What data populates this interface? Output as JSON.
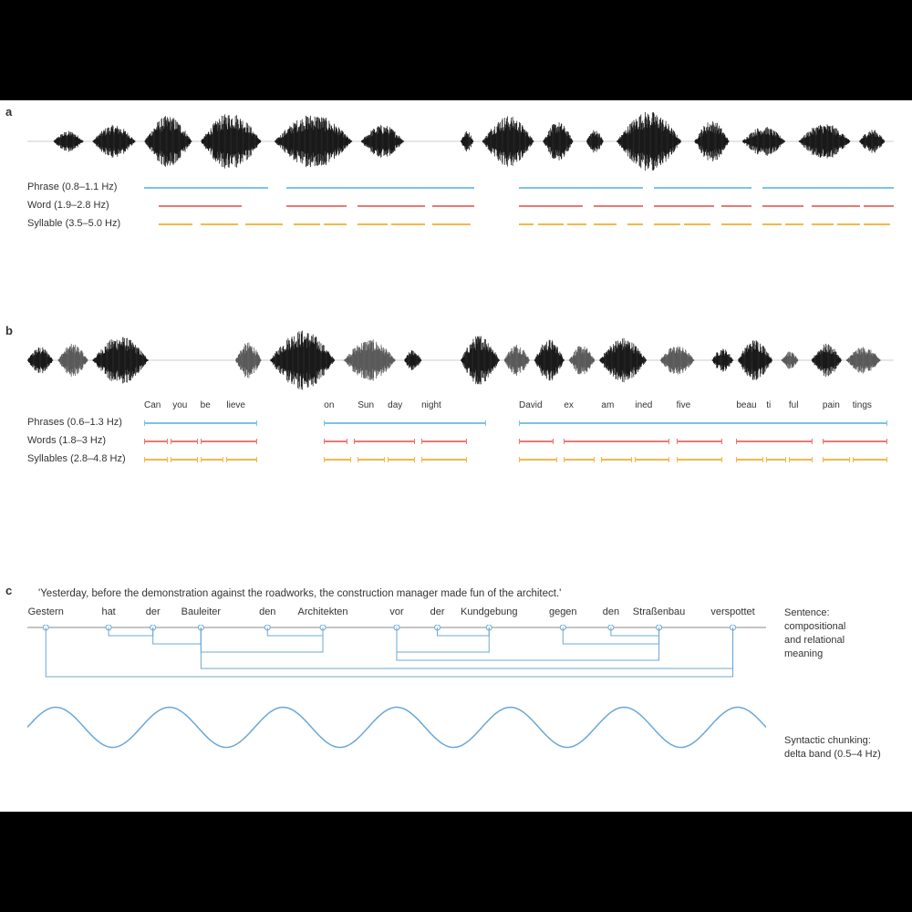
{
  "colors": {
    "phrase": "#7cc3e8",
    "word": "#e77a73",
    "syllable": "#f0b94a",
    "waveform": "#1a1a1a",
    "waveform_gray": "#5a5a5a",
    "text": "#333333",
    "tree": "#6aa8d8",
    "wave": "#6aa8d8",
    "baseline": "#888888"
  },
  "panel_a": {
    "label": "a",
    "phrase_label": "Phrase (0.8–1.1 Hz)",
    "word_label": "Word (1.9–2.8 Hz)",
    "syllable_label": "Syllable (3.5–5.0 Hz)",
    "waveform_clusters": [
      {
        "x": 0.03,
        "w": 0.035,
        "h": 0.35
      },
      {
        "x": 0.075,
        "w": 0.05,
        "h": 0.55
      },
      {
        "x": 0.135,
        "w": 0.055,
        "h": 0.85
      },
      {
        "x": 0.2,
        "w": 0.07,
        "h": 0.95
      },
      {
        "x": 0.285,
        "w": 0.09,
        "h": 0.9
      },
      {
        "x": 0.385,
        "w": 0.05,
        "h": 0.55
      },
      {
        "x": 0.5,
        "w": 0.015,
        "h": 0.35
      },
      {
        "x": 0.525,
        "w": 0.06,
        "h": 0.85
      },
      {
        "x": 0.595,
        "w": 0.035,
        "h": 0.65
      },
      {
        "x": 0.645,
        "w": 0.02,
        "h": 0.4
      },
      {
        "x": 0.68,
        "w": 0.075,
        "h": 1.0
      },
      {
        "x": 0.77,
        "w": 0.04,
        "h": 0.7
      },
      {
        "x": 0.825,
        "w": 0.05,
        "h": 0.5
      },
      {
        "x": 0.89,
        "w": 0.06,
        "h": 0.6
      },
      {
        "x": 0.96,
        "w": 0.03,
        "h": 0.4
      }
    ],
    "phrase_segs": [
      {
        "s": 0.0,
        "e": 0.165
      },
      {
        "s": 0.19,
        "e": 0.44
      },
      {
        "s": 0.5,
        "e": 0.665
      },
      {
        "s": 0.68,
        "e": 0.81
      },
      {
        "s": 0.825,
        "e": 1.0
      }
    ],
    "word_segs": [
      {
        "s": 0.02,
        "e": 0.13
      },
      {
        "s": 0.19,
        "e": 0.27
      },
      {
        "s": 0.285,
        "e": 0.375
      },
      {
        "s": 0.385,
        "e": 0.44
      },
      {
        "s": 0.5,
        "e": 0.585
      },
      {
        "s": 0.6,
        "e": 0.665
      },
      {
        "s": 0.68,
        "e": 0.76
      },
      {
        "s": 0.77,
        "e": 0.81
      },
      {
        "s": 0.825,
        "e": 0.88
      },
      {
        "s": 0.89,
        "e": 0.955
      },
      {
        "s": 0.96,
        "e": 1.0
      }
    ],
    "syllable_segs": [
      {
        "s": 0.02,
        "e": 0.065
      },
      {
        "s": 0.075,
        "e": 0.125
      },
      {
        "s": 0.135,
        "e": 0.185
      },
      {
        "s": 0.2,
        "e": 0.235
      },
      {
        "s": 0.24,
        "e": 0.27
      },
      {
        "s": 0.285,
        "e": 0.325
      },
      {
        "s": 0.33,
        "e": 0.375
      },
      {
        "s": 0.385,
        "e": 0.435
      },
      {
        "s": 0.5,
        "e": 0.52
      },
      {
        "s": 0.525,
        "e": 0.56
      },
      {
        "s": 0.565,
        "e": 0.59
      },
      {
        "s": 0.6,
        "e": 0.63
      },
      {
        "s": 0.645,
        "e": 0.665
      },
      {
        "s": 0.68,
        "e": 0.715
      },
      {
        "s": 0.72,
        "e": 0.755
      },
      {
        "s": 0.77,
        "e": 0.81
      },
      {
        "s": 0.825,
        "e": 0.85
      },
      {
        "s": 0.855,
        "e": 0.88
      },
      {
        "s": 0.89,
        "e": 0.92
      },
      {
        "s": 0.925,
        "e": 0.955
      },
      {
        "s": 0.96,
        "e": 0.995
      }
    ]
  },
  "panel_b": {
    "label": "b",
    "phrase_label": "Phrases (0.6–1.3 Hz)",
    "word_label": "Words (1.8–3 Hz)",
    "syllable_label": "Syllables (2.8–4.8 Hz)",
    "syllables": [
      {
        "t": "Can",
        "x": 0.0
      },
      {
        "t": "you",
        "x": 0.038
      },
      {
        "t": "be",
        "x": 0.075
      },
      {
        "t": "lieve",
        "x": 0.11
      },
      {
        "t": "on",
        "x": 0.24
      },
      {
        "t": "Sun",
        "x": 0.285
      },
      {
        "t": "day",
        "x": 0.325
      },
      {
        "t": "night",
        "x": 0.37
      },
      {
        "t": "David",
        "x": 0.5
      },
      {
        "t": "ex",
        "x": 0.56
      },
      {
        "t": "am",
        "x": 0.61
      },
      {
        "t": "ined",
        "x": 0.655
      },
      {
        "t": "five",
        "x": 0.71
      },
      {
        "t": "beau",
        "x": 0.79
      },
      {
        "t": "ti",
        "x": 0.83
      },
      {
        "t": "ful",
        "x": 0.86
      },
      {
        "t": "pain",
        "x": 0.905
      },
      {
        "t": "tings",
        "x": 0.945
      }
    ],
    "waveform_clusters": [
      {
        "x": 0.0,
        "w": 0.03,
        "h": 0.45,
        "g": false
      },
      {
        "x": 0.035,
        "w": 0.035,
        "h": 0.55,
        "g": true
      },
      {
        "x": 0.075,
        "w": 0.065,
        "h": 0.8,
        "g": false
      },
      {
        "x": 0.24,
        "w": 0.03,
        "h": 0.6,
        "g": true
      },
      {
        "x": 0.28,
        "w": 0.075,
        "h": 1.0,
        "g": false
      },
      {
        "x": 0.365,
        "w": 0.06,
        "h": 0.7,
        "g": true
      },
      {
        "x": 0.435,
        "w": 0.02,
        "h": 0.35,
        "g": false
      },
      {
        "x": 0.5,
        "w": 0.045,
        "h": 0.85,
        "g": false
      },
      {
        "x": 0.55,
        "w": 0.03,
        "h": 0.55,
        "g": true
      },
      {
        "x": 0.585,
        "w": 0.035,
        "h": 0.7,
        "g": false
      },
      {
        "x": 0.625,
        "w": 0.03,
        "h": 0.5,
        "g": true
      },
      {
        "x": 0.66,
        "w": 0.055,
        "h": 0.75,
        "g": false
      },
      {
        "x": 0.73,
        "w": 0.04,
        "h": 0.5,
        "g": true
      },
      {
        "x": 0.79,
        "w": 0.025,
        "h": 0.4,
        "g": false
      },
      {
        "x": 0.82,
        "w": 0.04,
        "h": 0.7,
        "g": false
      },
      {
        "x": 0.87,
        "w": 0.02,
        "h": 0.3,
        "g": true
      },
      {
        "x": 0.905,
        "w": 0.035,
        "h": 0.55,
        "g": false
      },
      {
        "x": 0.945,
        "w": 0.04,
        "h": 0.45,
        "g": true
      }
    ],
    "phrase_segs": [
      {
        "s": 0.0,
        "e": 0.15
      },
      {
        "s": 0.24,
        "e": 0.455
      },
      {
        "s": 0.5,
        "e": 0.99
      }
    ],
    "word_segs": [
      {
        "s": 0.0,
        "e": 0.03
      },
      {
        "s": 0.035,
        "e": 0.07
      },
      {
        "s": 0.075,
        "e": 0.15
      },
      {
        "s": 0.24,
        "e": 0.27
      },
      {
        "s": 0.28,
        "e": 0.36
      },
      {
        "s": 0.37,
        "e": 0.43
      },
      {
        "s": 0.5,
        "e": 0.545
      },
      {
        "s": 0.56,
        "e": 0.7
      },
      {
        "s": 0.71,
        "e": 0.77
      },
      {
        "s": 0.79,
        "e": 0.89
      },
      {
        "s": 0.905,
        "e": 0.99
      }
    ],
    "syllable_segs": [
      {
        "s": 0.0,
        "e": 0.03
      },
      {
        "s": 0.035,
        "e": 0.07
      },
      {
        "s": 0.075,
        "e": 0.105
      },
      {
        "s": 0.11,
        "e": 0.15
      },
      {
        "s": 0.24,
        "e": 0.275
      },
      {
        "s": 0.285,
        "e": 0.32
      },
      {
        "s": 0.325,
        "e": 0.36
      },
      {
        "s": 0.37,
        "e": 0.43
      },
      {
        "s": 0.5,
        "e": 0.55
      },
      {
        "s": 0.56,
        "e": 0.6
      },
      {
        "s": 0.61,
        "e": 0.65
      },
      {
        "s": 0.655,
        "e": 0.7
      },
      {
        "s": 0.71,
        "e": 0.77
      },
      {
        "s": 0.79,
        "e": 0.825
      },
      {
        "s": 0.83,
        "e": 0.855
      },
      {
        "s": 0.86,
        "e": 0.89
      },
      {
        "s": 0.905,
        "e": 0.94
      },
      {
        "s": 0.945,
        "e": 0.99
      }
    ]
  },
  "panel_c": {
    "label": "c",
    "quote": "'Yesterday, before the demonstration against the roadworks, the construction manager  made fun of the architect.'",
    "german_words": [
      {
        "t": "Gestern",
        "x": 0.025
      },
      {
        "t": "hat",
        "x": 0.11
      },
      {
        "t": "der",
        "x": 0.17
      },
      {
        "t": "Bauleiter",
        "x": 0.235
      },
      {
        "t": "den",
        "x": 0.325
      },
      {
        "t": "Architekten",
        "x": 0.4
      },
      {
        "t": "vor",
        "x": 0.5
      },
      {
        "t": "der",
        "x": 0.555
      },
      {
        "t": "Kundgebung",
        "x": 0.625
      },
      {
        "t": "gegen",
        "x": 0.725
      },
      {
        "t": "den",
        "x": 0.79
      },
      {
        "t": "Straßenbau",
        "x": 0.855
      },
      {
        "t": "verspottet",
        "x": 0.955
      }
    ],
    "nodes": [
      0.025,
      0.11,
      0.17,
      0.235,
      0.325,
      0.4,
      0.5,
      0.555,
      0.625,
      0.725,
      0.79,
      0.855,
      0.955
    ],
    "tree_links": [
      {
        "from": 1,
        "to": 2,
        "depth": 1
      },
      {
        "from": 2,
        "to": 3,
        "depth": 2
      },
      {
        "from": 4,
        "to": 5,
        "depth": 1
      },
      {
        "from": 7,
        "to": 8,
        "depth": 1
      },
      {
        "from": 10,
        "to": 11,
        "depth": 1
      },
      {
        "from": 9,
        "to": 11,
        "depth": 2
      },
      {
        "from": 6,
        "to": 8,
        "depth": 3
      },
      {
        "from": 6,
        "to": 11,
        "depth": 4
      },
      {
        "from": 3,
        "to": 5,
        "depth": 3
      },
      {
        "from": 0,
        "to": 12,
        "depth": 6
      },
      {
        "from": 3,
        "to": 12,
        "depth": 5
      }
    ],
    "side1": "Sentence:\ncompositional\nand relational\nmeaning",
    "side2": "Syntactic chunking:\ndelta band (0.5–4 Hz)",
    "wave_cycles": 6.5
  }
}
